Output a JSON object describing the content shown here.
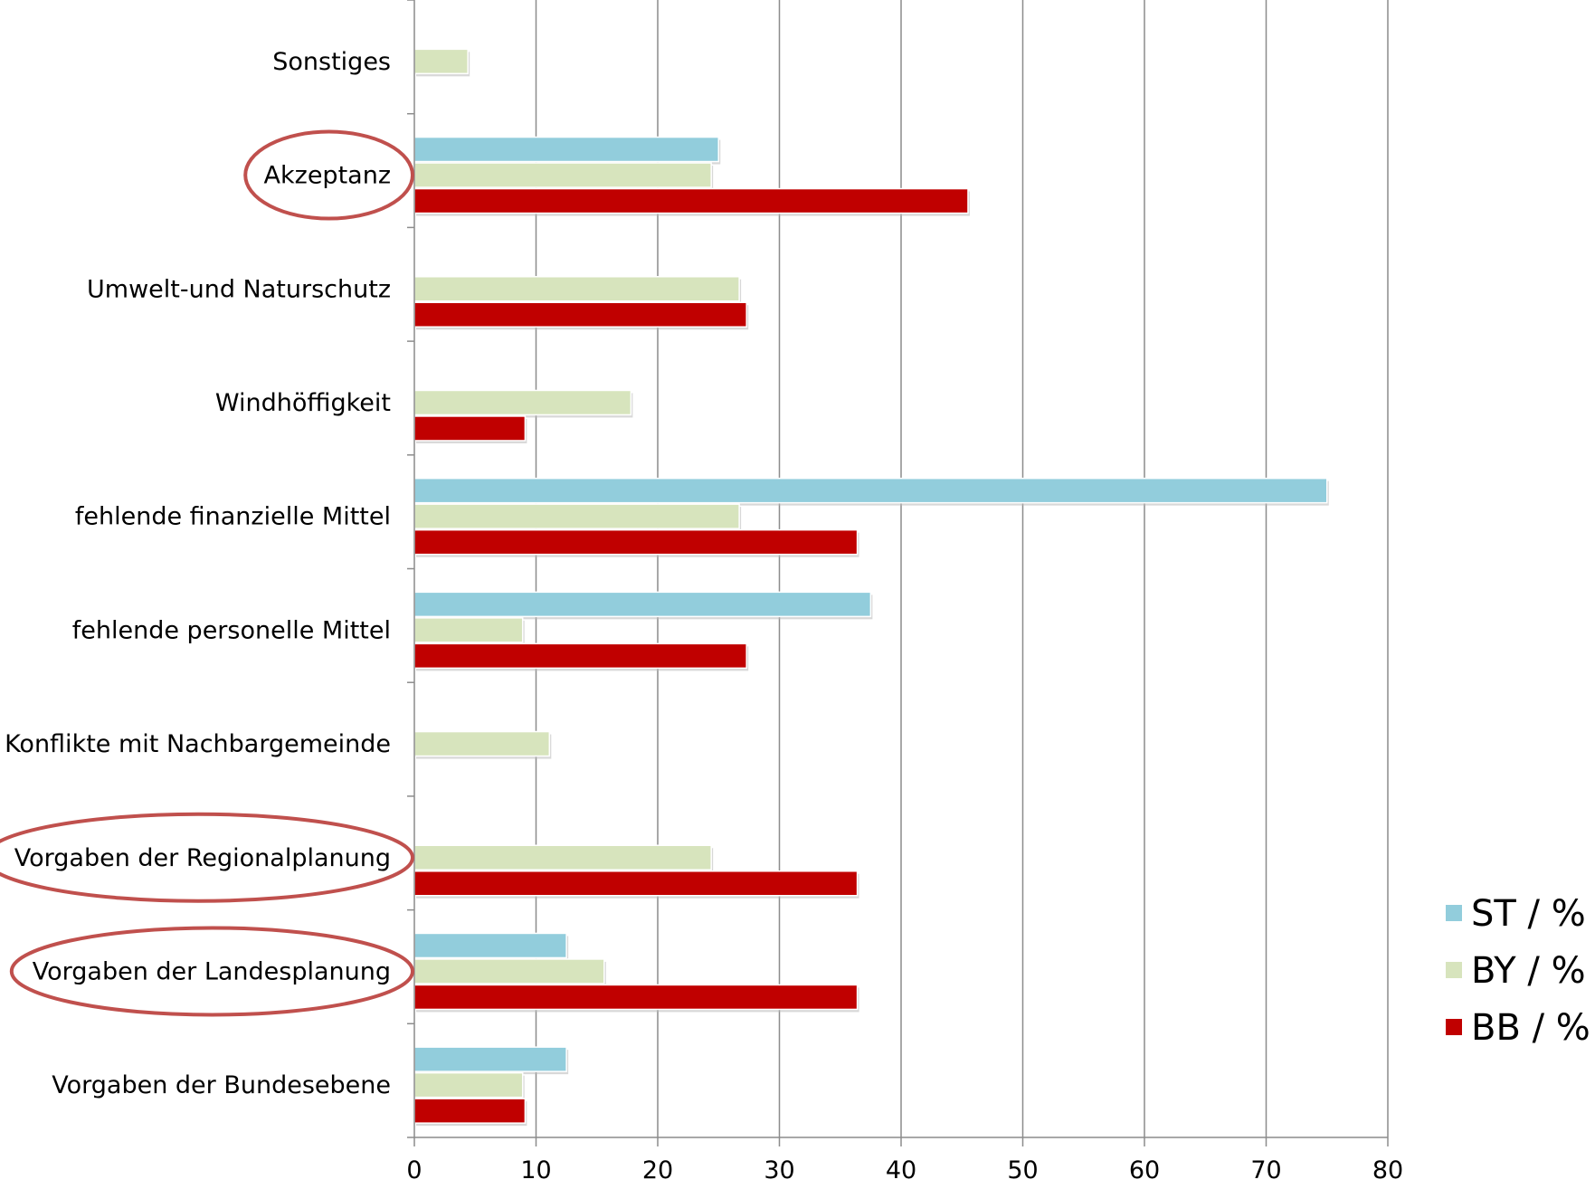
{
  "chart_data": {
    "type": "bar",
    "orientation": "horizontal",
    "categories": [
      "Sonstiges",
      "Akzeptanz",
      "Umwelt-und Naturschutz",
      "Windhöffigkeit",
      "fehlende finanzielle Mittel",
      "fehlende personelle Mittel",
      "Konflikte mit Nachbargemeinde",
      "Vorgaben der Regionalplanung",
      "Vorgaben der Landesplanung",
      "Vorgaben der Bundesebene"
    ],
    "series": [
      {
        "name": "ST / %",
        "color": "#92cddc",
        "values": [
          0,
          25,
          0,
          0,
          75,
          37.5,
          0,
          0,
          12.5,
          12.5
        ]
      },
      {
        "name": "BY / %",
        "color": "#d7e4bd",
        "values": [
          4.4,
          24.4,
          26.7,
          17.8,
          26.7,
          8.9,
          11.1,
          24.4,
          15.6,
          8.9
        ]
      },
      {
        "name": "BB / %",
        "color": "#c00000",
        "values": [
          0,
          45.5,
          27.3,
          9.1,
          36.4,
          27.3,
          0,
          36.4,
          36.4,
          9.1
        ]
      }
    ],
    "xlim": [
      0,
      80
    ],
    "x_ticks": [
      "0",
      "10",
      "20",
      "30",
      "40",
      "50",
      "60",
      "70",
      "80"
    ],
    "grid": true,
    "legend_position": "right",
    "highlighted_categories": [
      "Akzeptanz",
      "Vorgaben der Regionalplanung",
      "Vorgaben der Landesplanung"
    ],
    "highlight_color": "#c0504d"
  }
}
